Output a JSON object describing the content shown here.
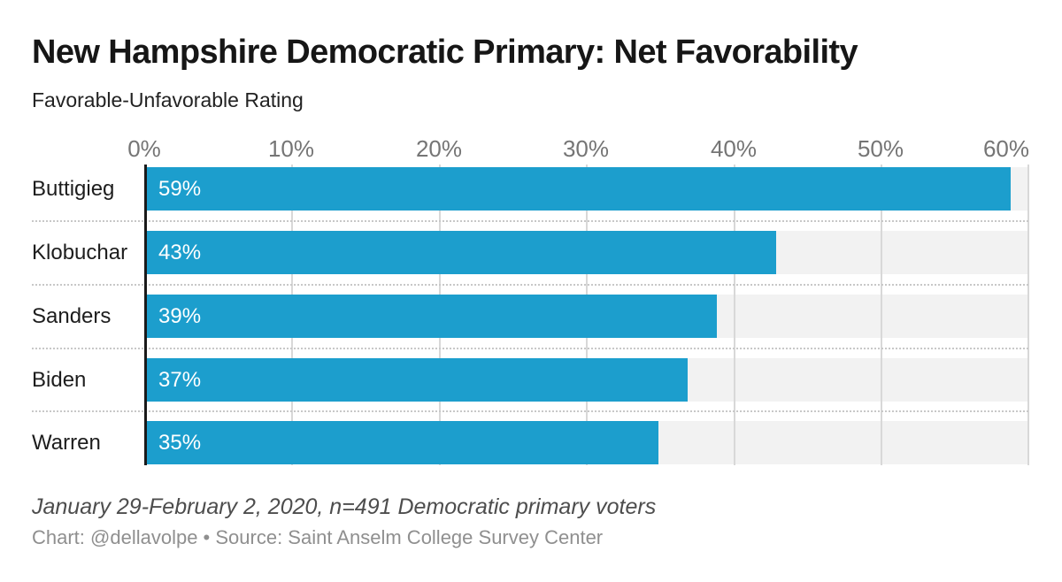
{
  "header": {
    "title": "New Hampshire Democratic Primary: Net Favorability",
    "subtitle": "Favorable-Unfavorable Rating"
  },
  "chart_data": {
    "type": "bar",
    "orientation": "horizontal",
    "title": "New Hampshire Democratic Primary: Net Favorability",
    "subtitle": "Favorable-Unfavorable Rating",
    "categories": [
      "Buttigieg",
      "Klobuchar",
      "Sanders",
      "Biden",
      "Warren"
    ],
    "values": [
      59,
      43,
      39,
      37,
      35
    ],
    "value_labels": [
      "59%",
      "43%",
      "39%",
      "37%",
      "35%"
    ],
    "xlim": [
      0,
      60
    ],
    "x_tick_labels": [
      "0%",
      "10%",
      "20%",
      "30%",
      "40%",
      "50%",
      "60%"
    ],
    "xlabel": "",
    "ylabel": "",
    "grid": "vertical-gridlines-on",
    "legend": "none",
    "bar_color": "#1c9ecd",
    "track_color": "#f2f2f2",
    "gridline_color": "#d8d8d8",
    "axis_line_color": "#1a1a1a",
    "value_label_color": "#ffffff"
  },
  "footer": {
    "note": "January 29-February 2, 2020, n=491 Democratic primary voters",
    "credit": "Chart: @dellavolpe • Source: Saint Anselm College Survey Center"
  }
}
